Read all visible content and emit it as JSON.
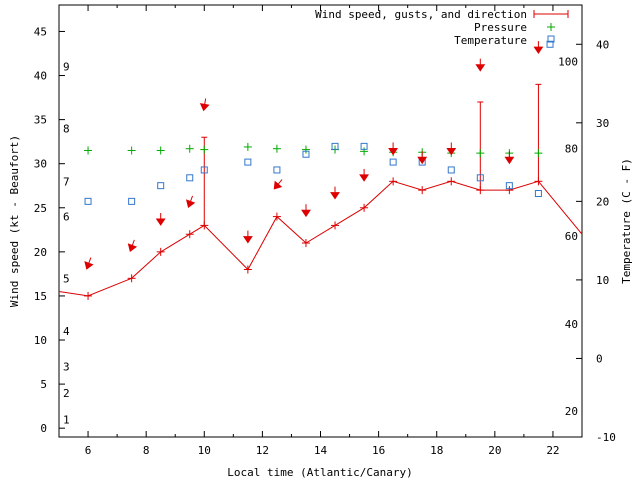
{
  "chart_data": {
    "type": "line",
    "xlabel": "Local time (Atlantic/Canary)",
    "ylabel": "Wind speed (kt - Beaufort)",
    "y2label": "Temperature (C - F)",
    "xlim": [
      5,
      23
    ],
    "ylim": [
      -1,
      48
    ],
    "y2lim": [
      -10,
      45
    ],
    "x_ticks": [
      6,
      8,
      10,
      12,
      14,
      16,
      18,
      20,
      22
    ],
    "y_ticks": [
      0,
      5,
      10,
      15,
      20,
      25,
      30,
      35,
      40,
      45
    ],
    "y2_ticks": [
      -10,
      0,
      10,
      20,
      30,
      40
    ],
    "beaufort_labels": [
      {
        "label": "1",
        "y": 1
      },
      {
        "label": "2",
        "y": 4
      },
      {
        "label": "3",
        "y": 7
      },
      {
        "label": "4",
        "y": 11
      },
      {
        "label": "5",
        "y": 17
      },
      {
        "label": "6",
        "y": 24
      },
      {
        "label": "7",
        "y": 28
      },
      {
        "label": "8",
        "y": 34
      },
      {
        "label": "9",
        "y": 41
      }
    ],
    "fahrenheit_labels": [
      {
        "label": "20",
        "y2": -6.7
      },
      {
        "label": "40",
        "y2": 4.4
      },
      {
        "label": "60",
        "y2": 15.6
      },
      {
        "label": "80",
        "y2": 26.7
      },
      {
        "label": "100",
        "y2": 37.8
      }
    ],
    "legend": [
      "Wind speed, gusts, and direction",
      "Pressure",
      "Temperature"
    ],
    "series": [
      {
        "name": "Wind speed, gusts, and direction",
        "color": "#dd0000",
        "x": [
          5,
          6,
          7.5,
          8.5,
          9.5,
          10,
          11.5,
          12.5,
          13.5,
          14.5,
          15.5,
          16.5,
          17.5,
          18.5,
          19.5,
          20.5,
          21.5,
          23
        ],
        "values": [
          15.5,
          15,
          17,
          20,
          22,
          23,
          18,
          24,
          21,
          23,
          25,
          28,
          27,
          28,
          27,
          27,
          28,
          22
        ]
      },
      {
        "name": "Gusts",
        "color": "#dd0000",
        "x": [
          10,
          19.5,
          21.5
        ],
        "values": [
          33,
          37,
          39
        ]
      },
      {
        "name": "Wind direction",
        "color": "#dd0000",
        "x": [
          6,
          7.5,
          8.5,
          9.5,
          10,
          11.5,
          12.5,
          13.5,
          14.5,
          15.5,
          16.5,
          17.5,
          18.5,
          19.5,
          20.5,
          21.5
        ],
        "y": [
          18.5,
          20.5,
          23.5,
          25.5,
          36.5,
          21.5,
          27.5,
          24.5,
          26.5,
          28.5,
          31.5,
          30.5,
          31.5,
          41,
          30.5,
          43
        ],
        "direction_deg": [
          20,
          20,
          0,
          20,
          10,
          0,
          40,
          0,
          0,
          0,
          0,
          0,
          0,
          0,
          0,
          0
        ]
      },
      {
        "name": "Pressure",
        "color": "#00aa00",
        "x": [
          6,
          7.5,
          8.5,
          9.5,
          10,
          11.5,
          12.5,
          13.5,
          14.5,
          15.5,
          16.5,
          17.5,
          18.5,
          19.5,
          20.5,
          21.5
        ],
        "values": [
          31.5,
          31.5,
          31.5,
          31.7,
          31.6,
          31.9,
          31.7,
          31.6,
          31.6,
          31.4,
          31.3,
          31.3,
          31.2,
          31.2,
          31.2,
          31.2
        ]
      },
      {
        "name": "Temperature",
        "color": "#3377cc",
        "x": [
          6,
          7.5,
          8.5,
          9.5,
          10,
          11.5,
          12.5,
          13.5,
          14.5,
          15.5,
          16.5,
          17.5,
          18.5,
          19.5,
          20.5,
          21.5,
          21.9
        ],
        "values": [
          20,
          20,
          22,
          23,
          24,
          25,
          24,
          26,
          27,
          27,
          25,
          25,
          24,
          23,
          22,
          21,
          40
        ]
      }
    ]
  }
}
